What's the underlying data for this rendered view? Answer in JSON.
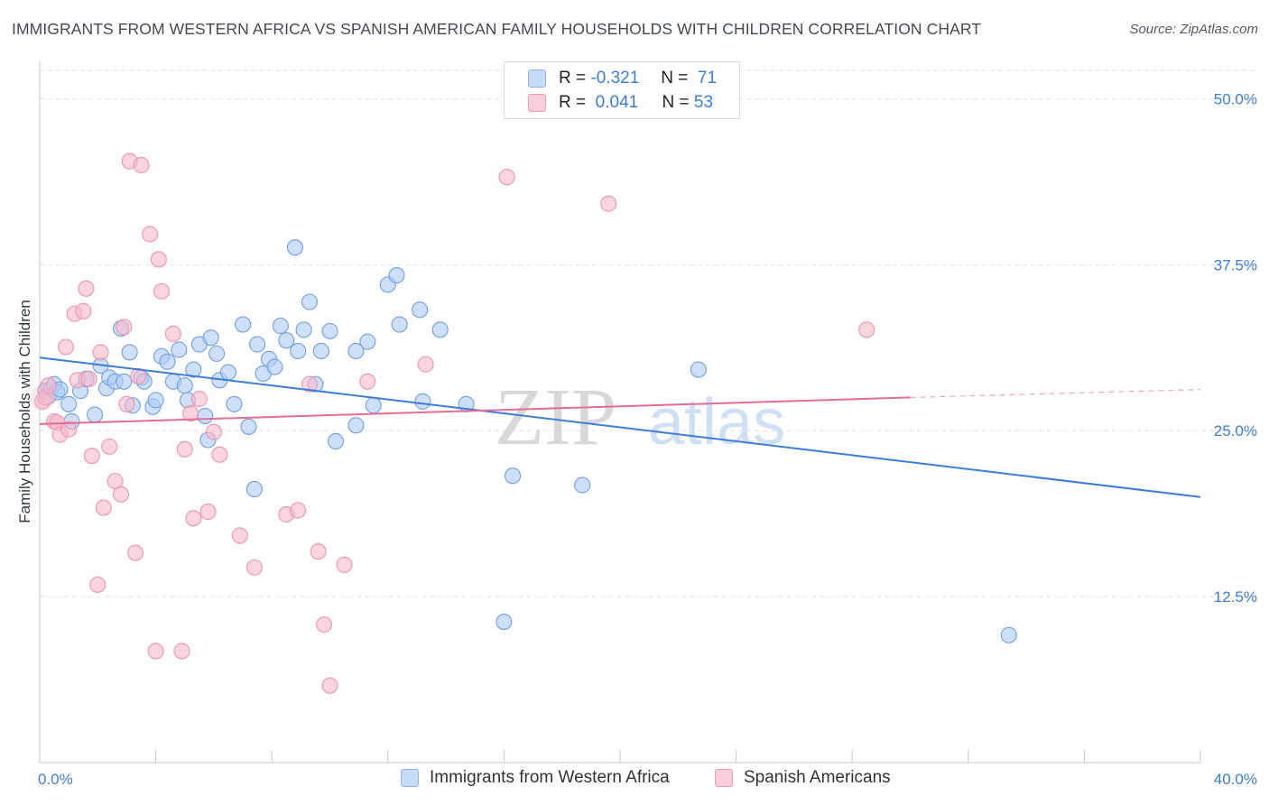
{
  "header": {
    "title": "IMMIGRANTS FROM WESTERN AFRICA VS SPANISH AMERICAN FAMILY HOUSEHOLDS WITH CHILDREN CORRELATION CHART",
    "source": "Source: ZipAtlas.com"
  },
  "colors": {
    "blue": "#3d7dd8",
    "blue_fill": "#aecbf5",
    "pink": "#e46b94",
    "pink_fill": "#f7b9cc",
    "grid": "#e3e3e3",
    "axis_text": "#3d7dd8"
  },
  "legend": {
    "rows": [
      {
        "r_label": "R =",
        "r_value": "-0.321",
        "n_label": "N =",
        "n_value": "71"
      },
      {
        "r_label": "R =",
        "r_value": "0.041",
        "n_label": "N =",
        "n_value": "53"
      }
    ]
  },
  "watermark": {
    "zip": "ZIP",
    "atlas": "atlas"
  },
  "chart_data": {
    "type": "scatter",
    "title": "IMMIGRANTS FROM WESTERN AFRICA VS SPANISH AMERICAN FAMILY HOUSEHOLDS WITH CHILDREN CORRELATION CHART",
    "xlabel": "",
    "ylabel": "Family Households with Children",
    "xlim": [
      0,
      40
    ],
    "ylim": [
      0,
      52
    ],
    "x_tick_labels": [
      "0.0%",
      "40.0%"
    ],
    "y_ticks": [
      12.5,
      25.0,
      37.5,
      50.0
    ],
    "y_tick_labels": [
      "12.5%",
      "25.0%",
      "37.5%",
      "50.0%"
    ],
    "grid": true,
    "legend_position": "top-center",
    "series": [
      {
        "name": "Immigrants from Western Africa",
        "color": "#3d7dd8",
        "r": -0.321,
        "n": 71,
        "trend": {
          "x0": 0,
          "y0": 30.5,
          "x1": 40,
          "y1": 20.0
        },
        "points": [
          [
            0.2,
            28.0
          ],
          [
            0.3,
            27.6
          ],
          [
            0.4,
            28.2
          ],
          [
            0.5,
            28.5
          ],
          [
            0.6,
            27.9
          ],
          [
            0.7,
            28.1
          ],
          [
            1.0,
            27.0
          ],
          [
            1.1,
            25.7
          ],
          [
            1.4,
            28.0
          ],
          [
            1.6,
            28.9
          ],
          [
            1.9,
            26.2
          ],
          [
            2.1,
            29.9
          ],
          [
            2.3,
            28.2
          ],
          [
            2.4,
            29.0
          ],
          [
            2.6,
            28.7
          ],
          [
            2.8,
            32.7
          ],
          [
            2.9,
            28.7
          ],
          [
            3.1,
            30.9
          ],
          [
            3.2,
            26.9
          ],
          [
            3.5,
            29.0
          ],
          [
            3.6,
            28.7
          ],
          [
            3.9,
            26.8
          ],
          [
            4.0,
            27.3
          ],
          [
            4.2,
            30.6
          ],
          [
            4.4,
            30.2
          ],
          [
            4.6,
            28.7
          ],
          [
            4.8,
            31.1
          ],
          [
            5.0,
            28.4
          ],
          [
            5.1,
            27.3
          ],
          [
            5.3,
            29.6
          ],
          [
            5.5,
            31.5
          ],
          [
            5.7,
            26.1
          ],
          [
            5.8,
            24.3
          ],
          [
            5.9,
            32.0
          ],
          [
            6.1,
            30.8
          ],
          [
            6.2,
            28.8
          ],
          [
            6.5,
            29.4
          ],
          [
            6.7,
            27.0
          ],
          [
            7.0,
            33.0
          ],
          [
            7.2,
            25.3
          ],
          [
            7.4,
            20.6
          ],
          [
            7.5,
            31.5
          ],
          [
            7.7,
            29.3
          ],
          [
            7.9,
            30.4
          ],
          [
            8.1,
            29.8
          ],
          [
            8.3,
            32.9
          ],
          [
            8.5,
            31.8
          ],
          [
            8.8,
            38.8
          ],
          [
            8.9,
            31.0
          ],
          [
            9.1,
            32.6
          ],
          [
            9.3,
            34.7
          ],
          [
            9.5,
            28.5
          ],
          [
            9.7,
            31.0
          ],
          [
            10.0,
            32.5
          ],
          [
            10.2,
            24.2
          ],
          [
            10.9,
            25.4
          ],
          [
            10.9,
            31.0
          ],
          [
            11.3,
            31.7
          ],
          [
            11.5,
            26.9
          ],
          [
            12.0,
            36.0
          ],
          [
            12.3,
            36.7
          ],
          [
            12.4,
            33.0
          ],
          [
            13.1,
            34.1
          ],
          [
            13.2,
            27.2
          ],
          [
            13.8,
            32.6
          ],
          [
            14.7,
            27.0
          ],
          [
            16.3,
            21.6
          ],
          [
            16.0,
            10.6
          ],
          [
            18.7,
            20.9
          ],
          [
            22.7,
            29.6
          ],
          [
            33.4,
            9.6
          ]
        ]
      },
      {
        "name": "Spanish Americans",
        "color": "#e46b94",
        "r": 0.041,
        "n": 53,
        "trend": {
          "x0": 0,
          "y0": 25.5,
          "x1": 30,
          "y1": 27.5,
          "dashed_to_x": 40,
          "dashed_to_y": 28.1
        },
        "points": [
          [
            0.1,
            27.2
          ],
          [
            0.2,
            27.5
          ],
          [
            0.3,
            28.4
          ],
          [
            0.5,
            25.7
          ],
          [
            0.6,
            25.6
          ],
          [
            0.7,
            24.7
          ],
          [
            0.9,
            31.3
          ],
          [
            1.0,
            25.1
          ],
          [
            1.2,
            33.8
          ],
          [
            1.3,
            28.8
          ],
          [
            1.5,
            34.0
          ],
          [
            1.6,
            35.7
          ],
          [
            1.7,
            28.9
          ],
          [
            1.8,
            23.1
          ],
          [
            2.0,
            13.4
          ],
          [
            2.1,
            30.9
          ],
          [
            2.2,
            19.2
          ],
          [
            2.4,
            23.8
          ],
          [
            2.6,
            21.2
          ],
          [
            2.8,
            20.2
          ],
          [
            2.9,
            32.8
          ],
          [
            3.0,
            27.0
          ],
          [
            3.1,
            45.3
          ],
          [
            3.3,
            15.8
          ],
          [
            3.5,
            45.0
          ],
          [
            3.8,
            39.8
          ],
          [
            4.0,
            8.4
          ],
          [
            4.1,
            37.9
          ],
          [
            4.2,
            35.5
          ],
          [
            4.6,
            32.3
          ],
          [
            4.9,
            8.4
          ],
          [
            5.0,
            23.6
          ],
          [
            5.2,
            26.3
          ],
          [
            5.3,
            18.4
          ],
          [
            5.5,
            27.4
          ],
          [
            5.8,
            18.9
          ],
          [
            6.0,
            24.9
          ],
          [
            6.2,
            23.2
          ],
          [
            6.9,
            17.1
          ],
          [
            7.4,
            14.7
          ],
          [
            8.5,
            18.7
          ],
          [
            8.9,
            19.0
          ],
          [
            9.3,
            28.5
          ],
          [
            9.6,
            15.9
          ],
          [
            9.8,
            10.4
          ],
          [
            10.0,
            5.8
          ],
          [
            10.5,
            14.9
          ],
          [
            11.3,
            28.7
          ],
          [
            13.3,
            30.0
          ],
          [
            16.1,
            44.1
          ],
          [
            19.6,
            42.1
          ],
          [
            28.5,
            32.6
          ],
          [
            3.4,
            29.1
          ]
        ]
      }
    ]
  },
  "bottom_legend": {
    "items": [
      {
        "label": "Immigrants from Western Africa"
      },
      {
        "label": "Spanish Americans"
      }
    ]
  }
}
